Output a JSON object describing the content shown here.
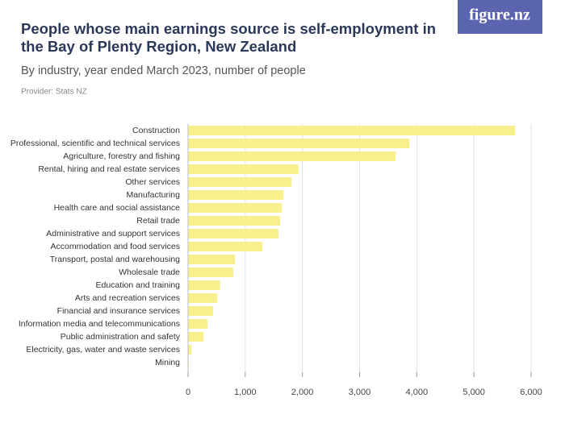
{
  "brand": "figure.nz",
  "chart_data": {
    "type": "bar",
    "orientation": "horizontal",
    "title": "People whose main earnings source is self-employment in the Bay of Plenty Region, New Zealand",
    "subtitle": "By industry, year ended March 2023, number of people",
    "provider": "Provider: Stats NZ",
    "categories": [
      "Construction",
      "Professional, scientific and technical services",
      "Agriculture, forestry and fishing",
      "Rental, hiring and real estate services",
      "Other services",
      "Manufacturing",
      "Health care and social assistance",
      "Retail trade",
      "Administrative and support services",
      "Accommodation and food services",
      "Transport, postal and warehousing",
      "Wholesale trade",
      "Education and training",
      "Arts and recreation services",
      "Financial and insurance services",
      "Information media and telecommunications",
      "Public administration and safety",
      "Electricity, gas, water and waste services",
      "Mining"
    ],
    "values": [
      5720,
      3870,
      3630,
      1930,
      1810,
      1670,
      1640,
      1610,
      1580,
      1300,
      820,
      790,
      560,
      510,
      440,
      340,
      270,
      60,
      10
    ],
    "color": "#f8f08a",
    "xlim": [
      0,
      6000
    ],
    "xticks": [
      0,
      {
        "value": 1000,
        "label": "1,000"
      },
      {
        "value": 2000,
        "label": "2,000"
      },
      {
        "value": 3000,
        "label": "3,000"
      },
      {
        "value": 4000,
        "label": "4,000"
      },
      {
        "value": 5000,
        "label": "5,000"
      },
      {
        "value": 6000,
        "label": "6,000"
      }
    ],
    "grid": true
  }
}
